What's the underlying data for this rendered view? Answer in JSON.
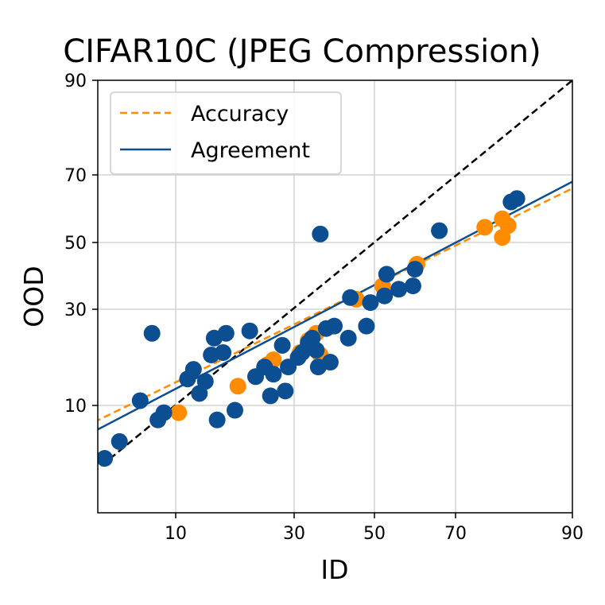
{
  "chart_data": {
    "type": "scatter",
    "title": "CIFAR10C (JPEG Compression)",
    "xlabel": "ID",
    "ylabel": "OOD",
    "xlim": [
      -5.5,
      90
    ],
    "ylim": [
      -5.5,
      90
    ],
    "scale": "probit",
    "xticks": [
      "10",
      "30",
      "50",
      "70",
      "90"
    ],
    "yticks": [
      "10",
      "30",
      "50",
      "70",
      "90"
    ],
    "grid": true,
    "legend_position": "top-left",
    "legend": [
      {
        "label": "Accuracy",
        "color": "#FF8C00",
        "style": "dashed"
      },
      {
        "label": "Agreement",
        "color": "#0C4E92",
        "style": "solid"
      }
    ],
    "diagonal": {
      "style": "dashed",
      "color": "#000000",
      "from": [
        -5.5,
        -5.5
      ],
      "to": [
        90,
        90
      ]
    },
    "fits": [
      {
        "name": "Accuracy",
        "color": "#FF8C00",
        "style": "dashed",
        "from": [
          -5.5,
          5.5
        ],
        "to": [
          90,
          66
        ]
      },
      {
        "name": "Agreement",
        "color": "#0C4E92",
        "style": "solid",
        "from": [
          -5.5,
          3.5
        ],
        "to": [
          90,
          68
        ]
      }
    ],
    "series": [
      {
        "name": "Accuracy",
        "color": "#FF8C00",
        "points": [
          [
            10.5,
            8.5
          ],
          [
            20.5,
            14
          ],
          [
            23.5,
            16
          ],
          [
            25.5,
            18.5
          ],
          [
            26.5,
            19.5
          ],
          [
            31.5,
            21
          ],
          [
            33.5,
            23.5
          ],
          [
            35.5,
            25
          ],
          [
            36.5,
            20.5
          ],
          [
            45.5,
            33
          ],
          [
            52,
            37
          ],
          [
            60.5,
            43.5
          ],
          [
            75,
            54.5
          ],
          [
            78,
            57
          ],
          [
            78,
            51.5
          ],
          [
            79,
            55
          ]
        ]
      },
      {
        "name": "Agreement",
        "color": "#0C4E92",
        "points": [
          [
            -2,
            -1
          ],
          [
            0.5,
            2.5
          ],
          [
            4,
            11
          ],
          [
            6,
            25
          ],
          [
            7,
            7
          ],
          [
            8,
            8.5
          ],
          [
            12,
            15.5
          ],
          [
            13,
            17.5
          ],
          [
            14,
            12.5
          ],
          [
            15,
            15
          ],
          [
            16,
            20.5
          ],
          [
            16.5,
            24
          ],
          [
            17,
            7
          ],
          [
            18,
            21
          ],
          [
            18.5,
            25
          ],
          [
            20,
            9
          ],
          [
            22.5,
            25.5
          ],
          [
            23.5,
            16
          ],
          [
            25,
            18
          ],
          [
            26,
            12
          ],
          [
            26.5,
            16.5
          ],
          [
            28,
            22.5
          ],
          [
            28.5,
            13
          ],
          [
            29,
            18
          ],
          [
            31,
            20
          ],
          [
            32,
            21
          ],
          [
            33.5,
            23
          ],
          [
            34.5,
            24
          ],
          [
            35.5,
            21.5
          ],
          [
            36,
            18
          ],
          [
            36.5,
            52.5
          ],
          [
            38,
            26
          ],
          [
            39,
            19
          ],
          [
            40,
            26.5
          ],
          [
            43.5,
            24
          ],
          [
            44,
            33.5
          ],
          [
            48,
            26.5
          ],
          [
            49,
            32
          ],
          [
            52.5,
            34
          ],
          [
            53,
            40.5
          ],
          [
            56,
            36
          ],
          [
            59.5,
            37
          ],
          [
            60,
            42
          ],
          [
            66,
            53.5
          ],
          [
            79.5,
            62
          ],
          [
            80.5,
            63
          ]
        ]
      }
    ]
  }
}
